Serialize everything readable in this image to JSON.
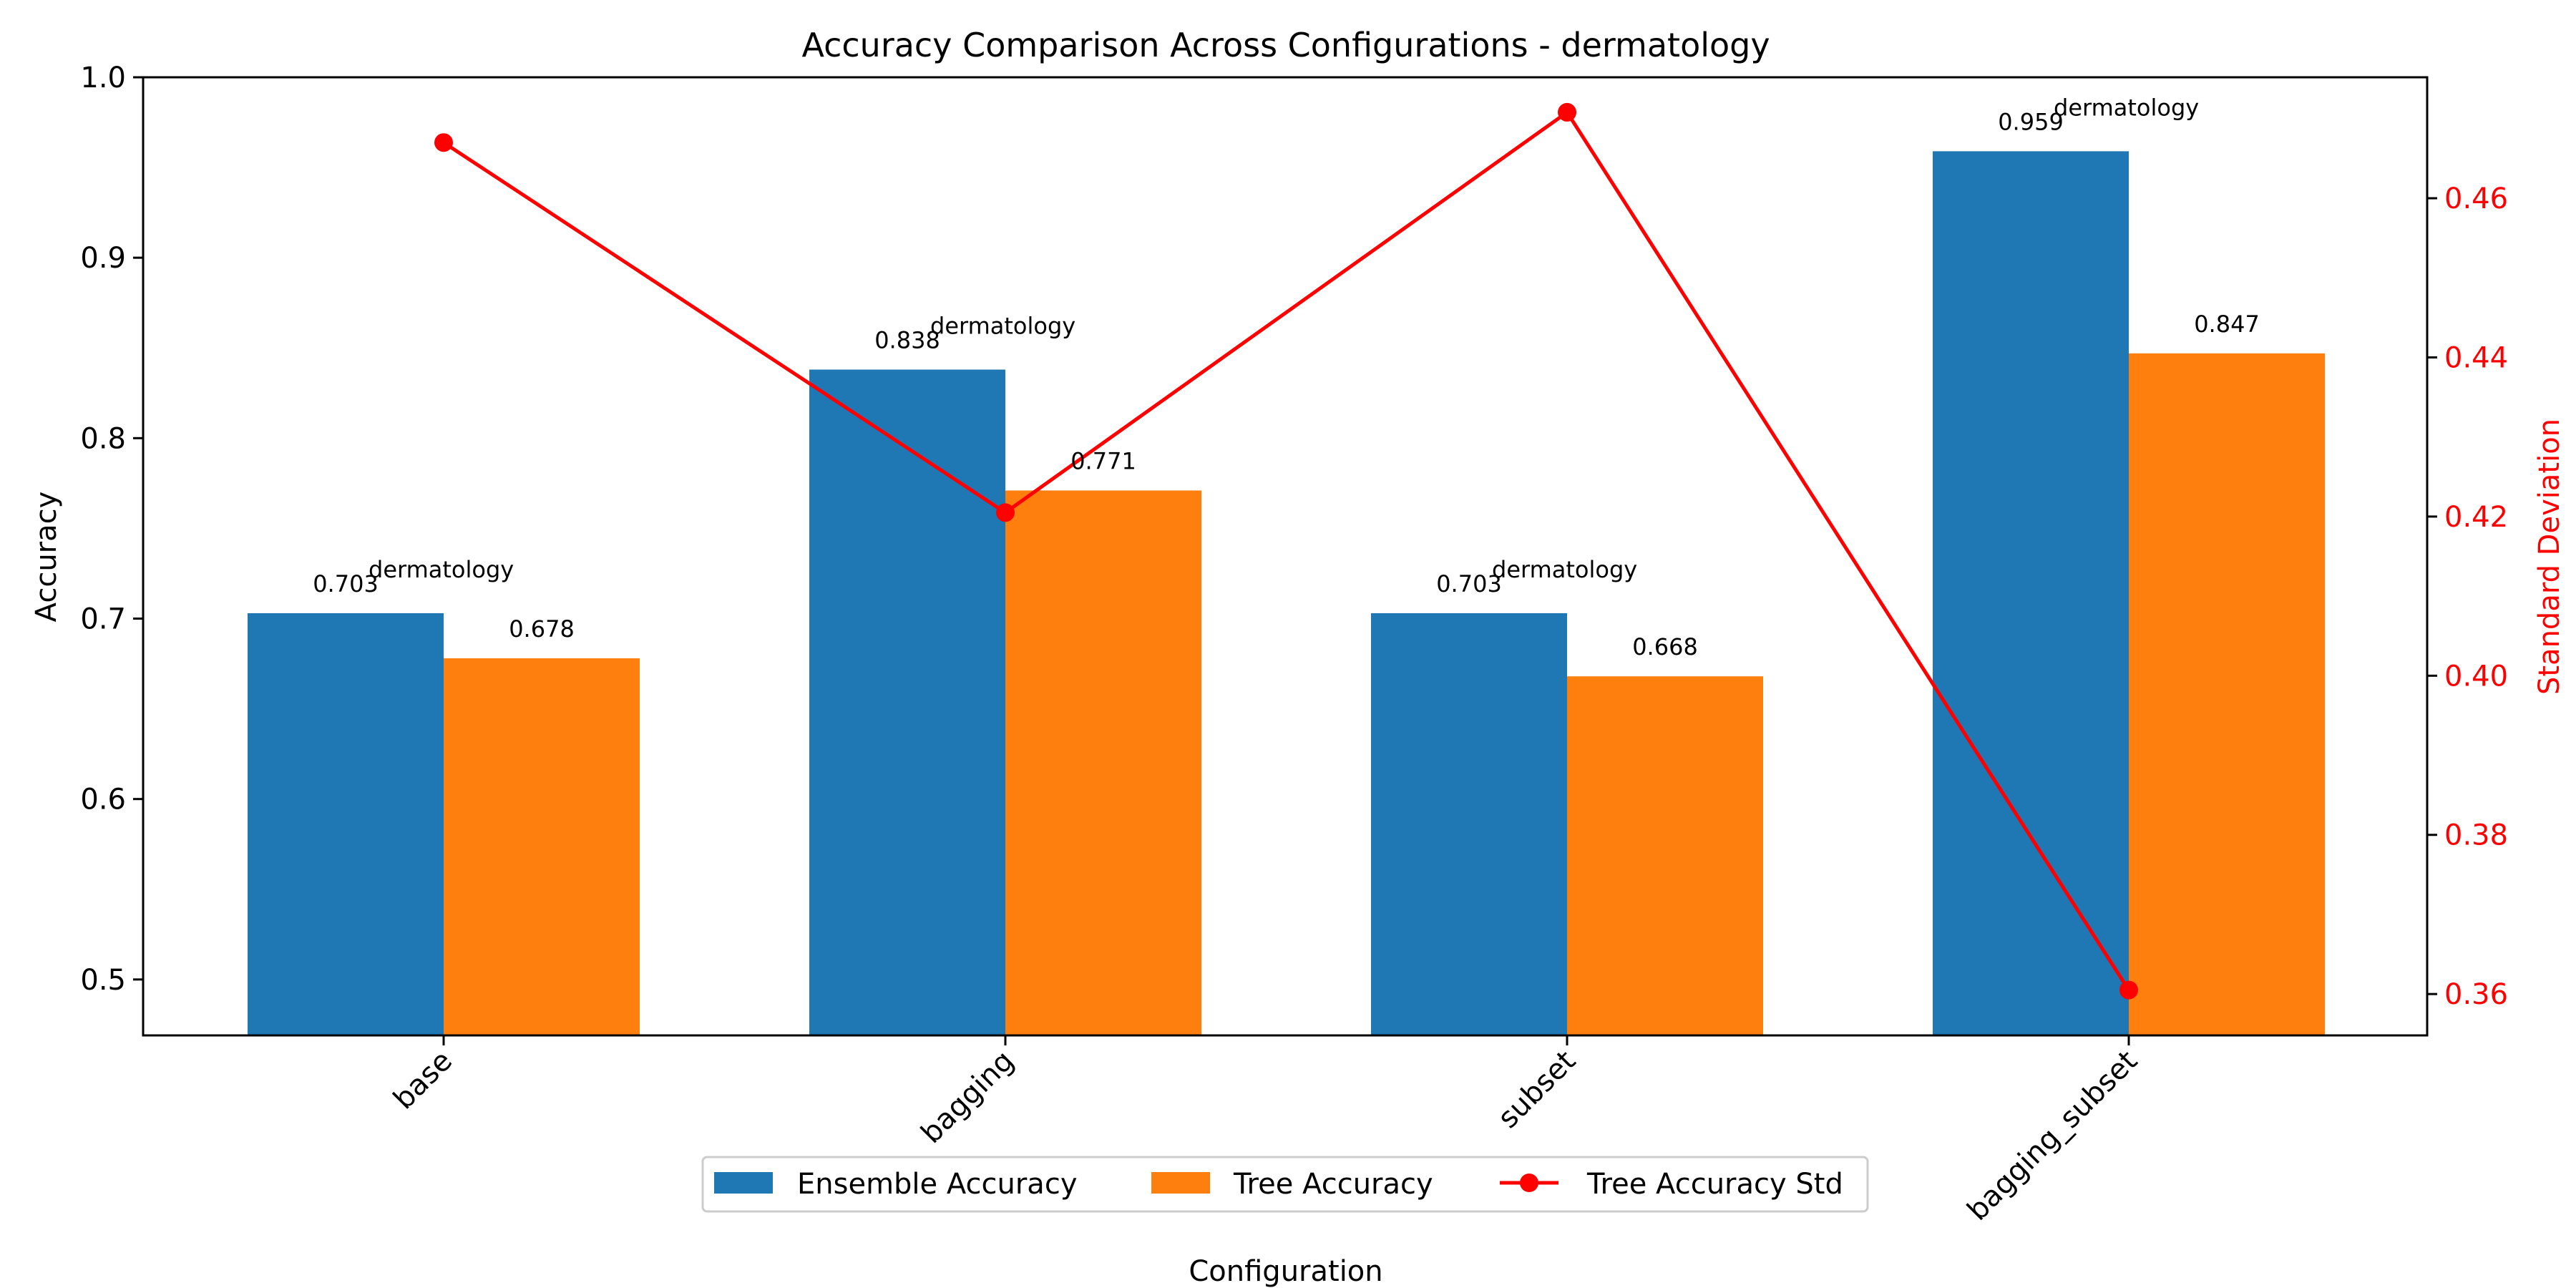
{
  "chart_data": {
    "type": "bar",
    "title": "Accuracy Comparison Across Configurations - dermatology",
    "xlabel": "Configuration",
    "ylabel": "Accuracy",
    "y2label": "Standard Deviation",
    "categories": [
      "base",
      "bagging",
      "subset",
      "bagging_subset"
    ],
    "ylim": [
      0.469,
      1.0
    ],
    "y2lim": [
      0.3548,
      0.4752
    ],
    "yticks": [
      "0.5",
      "0.6",
      "0.7",
      "0.8",
      "0.9",
      "1.0"
    ],
    "y2ticks": [
      "0.36",
      "0.38",
      "0.40",
      "0.42",
      "0.44",
      "0.46"
    ],
    "series": [
      {
        "name": "Ensemble Accuracy",
        "type": "bar",
        "axis": "left",
        "color": "#1f77b4",
        "values": [
          0.703,
          0.838,
          0.703,
          0.959
        ],
        "labels": [
          "0.703",
          "0.838",
          "0.703",
          "0.959"
        ]
      },
      {
        "name": "Tree Accuracy",
        "type": "bar",
        "axis": "left",
        "color": "#ff7f0e",
        "values": [
          0.678,
          0.771,
          0.668,
          0.847
        ],
        "labels": [
          "0.678",
          "0.771",
          "0.668",
          "0.847"
        ]
      },
      {
        "name": "Tree Accuracy Std",
        "type": "line",
        "axis": "right",
        "color": "#ff0000",
        "values": [
          0.467,
          0.4205,
          0.4708,
          0.3605
        ]
      }
    ],
    "annotations": [
      "dermatology",
      "dermatology",
      "dermatology",
      "dermatology"
    ],
    "legend": {
      "placement": "bottom-center",
      "ncol": 3
    },
    "right_axis_color": "#ff0000",
    "grid": false
  }
}
